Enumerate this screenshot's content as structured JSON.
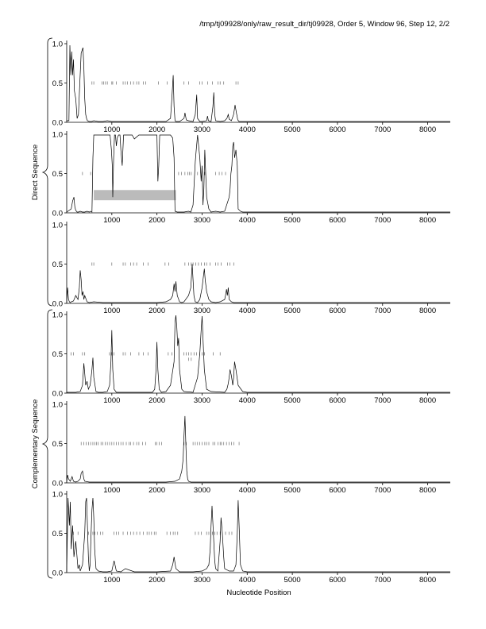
{
  "header": {
    "title": "/tmp/tj09928/only/raw_result_dir/tj09928, Order 5, Window 96, Step 12, 2/2"
  },
  "axes": {
    "xlabel": "Nucleotide Position",
    "group_labels": [
      "Direct Sequence",
      "Complementary Sequence"
    ],
    "x_ticks": [
      1000,
      2000,
      3000,
      4000,
      5000,
      6000,
      7000,
      8000
    ],
    "y_ticks": [
      "0.0",
      "0.5",
      "1.0"
    ]
  },
  "chart_data": [
    {
      "type": "line",
      "panel": 1,
      "group": "Direct Sequence",
      "xlim": [
        0,
        8500
      ],
      "ylim": [
        0,
        1
      ],
      "x": [
        0,
        50,
        70,
        90,
        110,
        130,
        150,
        170,
        200,
        230,
        260,
        290,
        320,
        360,
        380,
        400,
        420,
        440,
        460,
        500,
        550,
        600,
        700,
        800,
        900,
        1000,
        1200,
        1400,
        1600,
        1800,
        2000,
        2200,
        2300,
        2330,
        2360,
        2380,
        2400,
        2420,
        2500,
        2600,
        2620,
        2650,
        2700,
        2800,
        2850,
        2880,
        2900,
        2950,
        3000,
        3100,
        3120,
        3140,
        3200,
        3240,
        3260,
        3280,
        3300,
        3400,
        3500,
        3550,
        3580,
        3600,
        3650,
        3700,
        3730,
        3760,
        3790,
        3820,
        3900,
        4000,
        5000,
        6000,
        7000,
        8000,
        8500
      ],
      "y": [
        0.02,
        0.02,
        0.98,
        0.6,
        0.9,
        0.6,
        0.8,
        0.4,
        0.3,
        0.05,
        0.1,
        0.5,
        0.88,
        0.95,
        0.7,
        0.3,
        0.1,
        0.05,
        0.02,
        0.01,
        0.01,
        0.02,
        0.01,
        0.01,
        0.02,
        0.01,
        0.01,
        0.01,
        0.01,
        0.01,
        0.01,
        0.01,
        0.05,
        0.3,
        0.6,
        0.2,
        0.02,
        0.01,
        0.01,
        0.05,
        0.12,
        0.03,
        0.02,
        0.01,
        0.1,
        0.35,
        0.05,
        0.01,
        0.01,
        0.02,
        0.08,
        0.02,
        0.01,
        0.2,
        0.38,
        0.1,
        0.02,
        0.01,
        0.02,
        0.05,
        0.1,
        0.04,
        0.02,
        0.1,
        0.22,
        0.12,
        0.03,
        0.01,
        0.01,
        0.01,
        0.01,
        0.01,
        0.01,
        0.01,
        0.01
      ],
      "marks_y": 0.5,
      "marks_x": [
        560,
        600,
        780,
        820,
        860,
        900,
        1000,
        1020,
        1100,
        1250,
        1300,
        1350,
        1420,
        1480,
        1550,
        1600,
        1700,
        1750,
        2030,
        2230,
        2600,
        2700,
        2950,
        3000,
        3120,
        3230,
        3350,
        3400,
        3480,
        3750,
        3800
      ]
    },
    {
      "type": "line",
      "panel": 2,
      "group": "Direct Sequence",
      "xlim": [
        0,
        8500
      ],
      "ylim": [
        0,
        1
      ],
      "x": [
        0,
        100,
        130,
        160,
        180,
        200,
        230,
        260,
        300,
        350,
        400,
        450,
        500,
        530,
        560,
        580,
        600,
        620,
        640,
        660,
        700,
        800,
        900,
        960,
        990,
        1010,
        1020,
        1040,
        1060,
        1080,
        1100,
        1120,
        1150,
        1180,
        1200,
        1230,
        1260,
        1280,
        1300,
        1350,
        1400,
        1450,
        1500,
        1600,
        1800,
        2000,
        2020,
        2040,
        2060,
        2080,
        2100,
        2200,
        2300,
        2350,
        2380,
        2400,
        2450,
        2500,
        2600,
        2700,
        2750,
        2800,
        2850,
        2870,
        2900,
        2950,
        2980,
        3000,
        3020,
        3040,
        3060,
        3100,
        3150,
        3200,
        3300,
        3400,
        3500,
        3600,
        3620,
        3640,
        3660,
        3680,
        3700,
        3720,
        3750,
        3780,
        3800,
        3850,
        3900,
        4000,
        5000,
        6000,
        7000,
        8000,
        8500
      ],
      "y": [
        0.01,
        0.05,
        0.15,
        0.2,
        0.08,
        0.03,
        0.01,
        0.01,
        0.02,
        0.01,
        0.01,
        0.02,
        0.01,
        0.02,
        0.01,
        0.7,
        0.99,
        0.99,
        0.99,
        0.99,
        0.99,
        0.99,
        0.99,
        0.99,
        0.8,
        0.6,
        0.2,
        0.7,
        0.99,
        0.99,
        0.85,
        0.95,
        0.99,
        0.99,
        0.8,
        0.6,
        0.99,
        0.99,
        0.99,
        0.99,
        0.99,
        0.99,
        0.94,
        0.99,
        0.99,
        0.99,
        0.4,
        0.6,
        0.99,
        0.99,
        0.99,
        0.99,
        0.99,
        0.95,
        0.7,
        0.02,
        0.01,
        0.01,
        0.01,
        0.02,
        0.01,
        0.1,
        0.65,
        0.8,
        0.99,
        0.7,
        0.4,
        0.6,
        0.1,
        0.3,
        0.8,
        0.2,
        0.05,
        0.01,
        0.02,
        0.01,
        0.02,
        0.2,
        0.3,
        0.5,
        0.6,
        0.85,
        0.9,
        0.7,
        0.8,
        0.6,
        0.05,
        0.02,
        0.01,
        0.01,
        0.01,
        0.01,
        0.01,
        0.01,
        0.01
      ],
      "marks_y": 0.5,
      "marks_x": [
        350,
        530,
        2480,
        2540,
        2620,
        2680,
        2720,
        2760,
        2900,
        3060,
        3300,
        3380,
        3440,
        3520
      ],
      "highlight": {
        "x0": 600,
        "x1": 2420,
        "y0": 0.16,
        "y1": 0.29
      }
    },
    {
      "type": "line",
      "panel": 3,
      "group": "Direct Sequence",
      "xlim": [
        0,
        8500
      ],
      "ylim": [
        0,
        1
      ],
      "x": [
        0,
        20,
        40,
        60,
        80,
        100,
        150,
        200,
        250,
        280,
        300,
        320,
        340,
        360,
        380,
        400,
        450,
        500,
        600,
        800,
        1000,
        1500,
        2000,
        2200,
        2300,
        2350,
        2380,
        2400,
        2420,
        2450,
        2500,
        2550,
        2600,
        2700,
        2750,
        2780,
        2800,
        2820,
        2850,
        2900,
        2950,
        3000,
        3030,
        3050,
        3070,
        3100,
        3150,
        3200,
        3300,
        3400,
        3500,
        3520,
        3540,
        3560,
        3580,
        3600,
        3650,
        3700,
        3800,
        4000,
        5000,
        6000,
        7000,
        8000,
        8500
      ],
      "y": [
        0.01,
        0.2,
        0.05,
        0.02,
        0.01,
        0.02,
        0.03,
        0.1,
        0.05,
        0.2,
        0.42,
        0.3,
        0.1,
        0.15,
        0.05,
        0.1,
        0.02,
        0.01,
        0.02,
        0.01,
        0.01,
        0.01,
        0.01,
        0.02,
        0.05,
        0.1,
        0.25,
        0.15,
        0.28,
        0.1,
        0.02,
        0.01,
        0.02,
        0.1,
        0.2,
        0.5,
        0.3,
        0.1,
        0.02,
        0.01,
        0.05,
        0.2,
        0.35,
        0.44,
        0.3,
        0.15,
        0.05,
        0.02,
        0.01,
        0.02,
        0.05,
        0.1,
        0.18,
        0.1,
        0.2,
        0.05,
        0.02,
        0.01,
        0.01,
        0.01,
        0.01,
        0.01,
        0.01,
        0.01,
        0.01
      ],
      "marks_y": 0.5,
      "marks_x": [
        560,
        600,
        1000,
        1250,
        1300,
        1420,
        1480,
        1550,
        1700,
        1800,
        2180,
        2260,
        2620,
        2700,
        2760,
        2800,
        2860,
        2920,
        2980,
        3050,
        3100,
        3180,
        3300,
        3350,
        3420,
        3560,
        3620,
        3700
      ]
    },
    {
      "type": "line",
      "panel": 4,
      "group": "Complementary Sequence",
      "xlim": [
        0,
        8500
      ],
      "ylim": [
        0,
        1
      ],
      "x": [
        0,
        200,
        300,
        350,
        380,
        400,
        420,
        450,
        480,
        520,
        540,
        560,
        580,
        600,
        650,
        700,
        800,
        900,
        950,
        980,
        1000,
        1020,
        1050,
        1100,
        1500,
        1900,
        1950,
        1980,
        2000,
        2020,
        2050,
        2100,
        2200,
        2300,
        2380,
        2400,
        2420,
        2440,
        2460,
        2480,
        2500,
        2550,
        2600,
        2800,
        2900,
        2950,
        2980,
        3000,
        3020,
        3050,
        3100,
        3200,
        3500,
        3550,
        3580,
        3600,
        3620,
        3650,
        3680,
        3700,
        3720,
        3750,
        3800,
        3900,
        4000,
        5000,
        6000,
        7000,
        8000,
        8500
      ],
      "y": [
        0.01,
        0.01,
        0.02,
        0.1,
        0.38,
        0.25,
        0.1,
        0.15,
        0.05,
        0.1,
        0.2,
        0.3,
        0.45,
        0.2,
        0.02,
        0.01,
        0.01,
        0.02,
        0.1,
        0.4,
        0.8,
        0.3,
        0.05,
        0.01,
        0.01,
        0.01,
        0.05,
        0.3,
        0.65,
        0.3,
        0.05,
        0.01,
        0.02,
        0.1,
        0.4,
        0.9,
        0.99,
        0.85,
        0.6,
        0.7,
        0.3,
        0.05,
        0.02,
        0.01,
        0.2,
        0.5,
        0.8,
        0.98,
        0.7,
        0.3,
        0.05,
        0.02,
        0.01,
        0.05,
        0.12,
        0.2,
        0.3,
        0.22,
        0.1,
        0.2,
        0.4,
        0.3,
        0.1,
        0.02,
        0.01,
        0.01,
        0.01,
        0.01,
        0.01,
        0.01
      ],
      "marks_y": 0.5,
      "marks_x": [
        100,
        150,
        350,
        400,
        950,
        1000,
        1050,
        1250,
        1300,
        1420,
        1600,
        1700,
        1800,
        2250,
        2330,
        2600,
        2650,
        2700,
        2760,
        2820,
        2880,
        2950,
        3000,
        3050,
        3250,
        3400
      ],
      "marks_y2": 0.43,
      "marks_x2": [
        2700,
        2760
      ]
    },
    {
      "type": "line",
      "panel": 5,
      "group": "Complementary Sequence",
      "xlim": [
        0,
        8500
      ],
      "ylim": [
        0,
        1
      ],
      "x": [
        0,
        20,
        40,
        80,
        120,
        150,
        200,
        250,
        300,
        320,
        350,
        380,
        400,
        500,
        800,
        1000,
        1500,
        2000,
        2200,
        2400,
        2500,
        2550,
        2580,
        2600,
        2620,
        2640,
        2660,
        2680,
        2700,
        2750,
        2800,
        3000,
        3500,
        4000,
        5000,
        6000,
        7000,
        8000,
        8500
      ],
      "y": [
        0.01,
        0.1,
        0.05,
        0.02,
        0.08,
        0.02,
        0.01,
        0.02,
        0.05,
        0.12,
        0.15,
        0.05,
        0.02,
        0.01,
        0.01,
        0.01,
        0.01,
        0.01,
        0.01,
        0.02,
        0.05,
        0.15,
        0.3,
        0.6,
        0.85,
        0.5,
        0.15,
        0.05,
        0.02,
        0.01,
        0.01,
        0.01,
        0.01,
        0.01,
        0.01,
        0.01,
        0.01,
        0.01,
        0.01
      ],
      "marks_y": 0.5,
      "marks_x": [
        320,
        380,
        430,
        480,
        530,
        580,
        620,
        660,
        700,
        760,
        800,
        850,
        900,
        950,
        1000,
        1050,
        1100,
        1150,
        1200,
        1250,
        1320,
        1380,
        1420,
        1480,
        1550,
        1600,
        1680,
        1750,
        1960,
        2000,
        2050,
        2100,
        2600,
        2650,
        2800,
        2850,
        2900,
        2950,
        3000,
        3060,
        3100,
        3150,
        3240,
        3280,
        3350,
        3400,
        3430,
        3480,
        3540,
        3600,
        3650,
        3700,
        3820
      ]
    },
    {
      "type": "line",
      "panel": 6,
      "group": "Complementary Sequence",
      "xlim": [
        0,
        8500
      ],
      "ylim": [
        0,
        1
      ],
      "x": [
        0,
        30,
        60,
        80,
        100,
        130,
        160,
        200,
        250,
        280,
        300,
        350,
        400,
        420,
        440,
        460,
        480,
        500,
        520,
        540,
        560,
        580,
        600,
        620,
        650,
        700,
        800,
        900,
        1000,
        1030,
        1050,
        1100,
        1200,
        1300,
        1500,
        2000,
        2300,
        2350,
        2380,
        2420,
        2500,
        2600,
        2800,
        3000,
        3100,
        3150,
        3180,
        3200,
        3220,
        3250,
        3280,
        3300,
        3350,
        3400,
        3420,
        3450,
        3480,
        3500,
        3600,
        3700,
        3750,
        3780,
        3800,
        3820,
        3850,
        3900,
        4000,
        5000,
        6000,
        7000,
        8000,
        8500
      ],
      "y": [
        0.01,
        0.95,
        0.6,
        0.9,
        0.3,
        0.6,
        0.2,
        0.4,
        0.05,
        0.1,
        0.02,
        0.1,
        0.5,
        0.9,
        0.95,
        0.6,
        0.2,
        0.02,
        0.1,
        0.5,
        0.8,
        0.95,
        0.7,
        0.3,
        0.05,
        0.02,
        0.01,
        0.01,
        0.02,
        0.1,
        0.15,
        0.02,
        0.01,
        0.05,
        0.01,
        0.01,
        0.02,
        0.1,
        0.2,
        0.05,
        0.01,
        0.01,
        0.01,
        0.02,
        0.05,
        0.1,
        0.3,
        0.6,
        0.85,
        0.5,
        0.15,
        0.05,
        0.02,
        0.4,
        0.7,
        0.5,
        0.2,
        0.05,
        0.02,
        0.02,
        0.1,
        0.5,
        0.92,
        0.6,
        0.1,
        0.02,
        0.01,
        0.01,
        0.01,
        0.01,
        0.01,
        0.01
      ],
      "marks_y": 0.5,
      "marks_x": [
        150,
        250,
        480,
        580,
        620,
        680,
        750,
        800,
        1050,
        1100,
        1150,
        1250,
        1350,
        1420,
        1480,
        1550,
        1620,
        1700,
        1780,
        1830,
        1880,
        1940,
        1980,
        2220,
        2300,
        2360,
        2400,
        2460,
        2850,
        2920,
        2980,
        3100,
        3150,
        3230,
        3280,
        3330,
        3400,
        3520,
        3600,
        3660
      ]
    }
  ]
}
